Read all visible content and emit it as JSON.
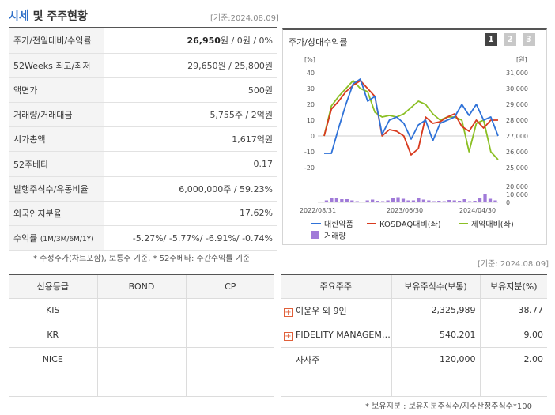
{
  "header": {
    "title_accent": "시세",
    "title_rest": " 및 주주현황",
    "date": "[기준:2024.08.09]"
  },
  "info_rows": [
    {
      "label": "주가/전일대비/수익률",
      "value_bold": "26,950",
      "value_rest": "원 / 0원 / 0%"
    },
    {
      "label": "52Weeks 최고/최저",
      "value": "29,650원 / 25,800원"
    },
    {
      "label": "액면가",
      "value": "500원"
    },
    {
      "label": "거래량/거래대금",
      "value": "5,755주 / 2억원"
    },
    {
      "label": "시가총액",
      "value": "1,617억원"
    },
    {
      "label": "52주베타",
      "value": "0.17"
    },
    {
      "label": "발행주식수/유동비율",
      "value": "6,000,000주 / 59.23%"
    },
    {
      "label": "외국인지분율",
      "value": "17.62%"
    },
    {
      "label": "수익률",
      "label_small": "(1M/3M/6M/1Y)",
      "value": "-5.27%/ -5.77%/ -6.91%/ -0.74%"
    }
  ],
  "info_footnote": "* 수정주가(차트포함), 보통주 기준, * 52주베타: 주간수익률 기준",
  "chart": {
    "title": "주가/상대수익률",
    "pages": [
      "1",
      "2",
      "3"
    ],
    "left_unit": "[%]",
    "right_unit": "[원]",
    "colors": {
      "price": "#2f72d8",
      "kosdaq": "#d83a1e",
      "pharma": "#8bbf24",
      "volume": "#a07ad8"
    }
  },
  "chart_data": {
    "type": "line",
    "x_ticks": [
      "2022/08/31",
      "2023/06/30",
      "2024/04/30"
    ],
    "left_axis": {
      "ticks": [
        "40",
        "30",
        "20",
        "10",
        "0",
        "-10",
        "-20"
      ],
      "ylim": [
        -20,
        40
      ]
    },
    "right_axis": {
      "ticks": [
        "31,000",
        "30,000",
        "29,000",
        "28,000",
        "27,000",
        "26,000",
        "25,000"
      ],
      "ylim": [
        25000,
        31000
      ]
    },
    "volume_axis": {
      "ticks": [
        "20,000",
        "10,000",
        "0"
      ],
      "ylim": [
        0,
        20000
      ]
    },
    "series": [
      {
        "name": "대한약품",
        "values": [
          -11,
          -11,
          5,
          20,
          33,
          36,
          22,
          25,
          1,
          10,
          12,
          8,
          -2,
          7,
          10,
          -3,
          8,
          10,
          12,
          20,
          13,
          20,
          10,
          12,
          0
        ]
      },
      {
        "name": "KOSDAQ대비(좌)",
        "values": [
          0,
          17,
          22,
          28,
          32,
          35,
          30,
          25,
          0,
          4,
          3,
          0,
          -12,
          -8,
          12,
          8,
          9,
          12,
          14,
          6,
          3,
          10,
          5,
          10,
          10
        ]
      },
      {
        "name": "제약대비(좌)",
        "values": [
          0,
          19,
          25,
          30,
          35,
          30,
          28,
          15,
          12,
          13,
          12,
          14,
          18,
          22,
          20,
          14,
          10,
          12,
          12,
          10,
          -10,
          8,
          10,
          -10,
          -15
        ]
      }
    ],
    "volume": {
      "name": "거래량",
      "values": [
        2500,
        6000,
        6000,
        4000,
        4000,
        2500,
        1500,
        1000,
        2500,
        3500,
        2000,
        1500,
        2500,
        5500,
        6500,
        4500,
        2500,
        2500,
        6000,
        3500,
        2500,
        1500,
        2000,
        1500,
        3000,
        2500,
        2000,
        4000,
        1500,
        2000,
        5000,
        10500,
        4500,
        2500
      ]
    }
  },
  "legend": {
    "price": "대한약품",
    "kosdaq": "KOSDAQ대비(좌)",
    "pharma": "제약대비(좌)",
    "volume": "거래량"
  },
  "date2": "[기준: 2024.08.09]",
  "credit": {
    "headers": [
      "신용등급",
      "BOND",
      "CP"
    ],
    "rows": [
      [
        "KIS",
        "",
        ""
      ],
      [
        "KR",
        "",
        ""
      ],
      [
        "NICE",
        "",
        ""
      ],
      [
        "",
        "",
        ""
      ]
    ]
  },
  "holders": {
    "headers": [
      "주요주주",
      "보유주식수(보통)",
      "보유지분(%)"
    ],
    "rows": [
      {
        "name": "이윤우 외 9인",
        "shares": "2,325,989",
        "pct": "38.77"
      },
      {
        "name": "FIDELITY MANAGEM…",
        "shares": "540,201",
        "pct": "9.00"
      },
      {
        "name": "자사주",
        "shares": "120,000",
        "pct": "2.00"
      }
    ]
  },
  "holders_note": "* 보유지분 : 보유지분주식수/지수산정주식수*100"
}
